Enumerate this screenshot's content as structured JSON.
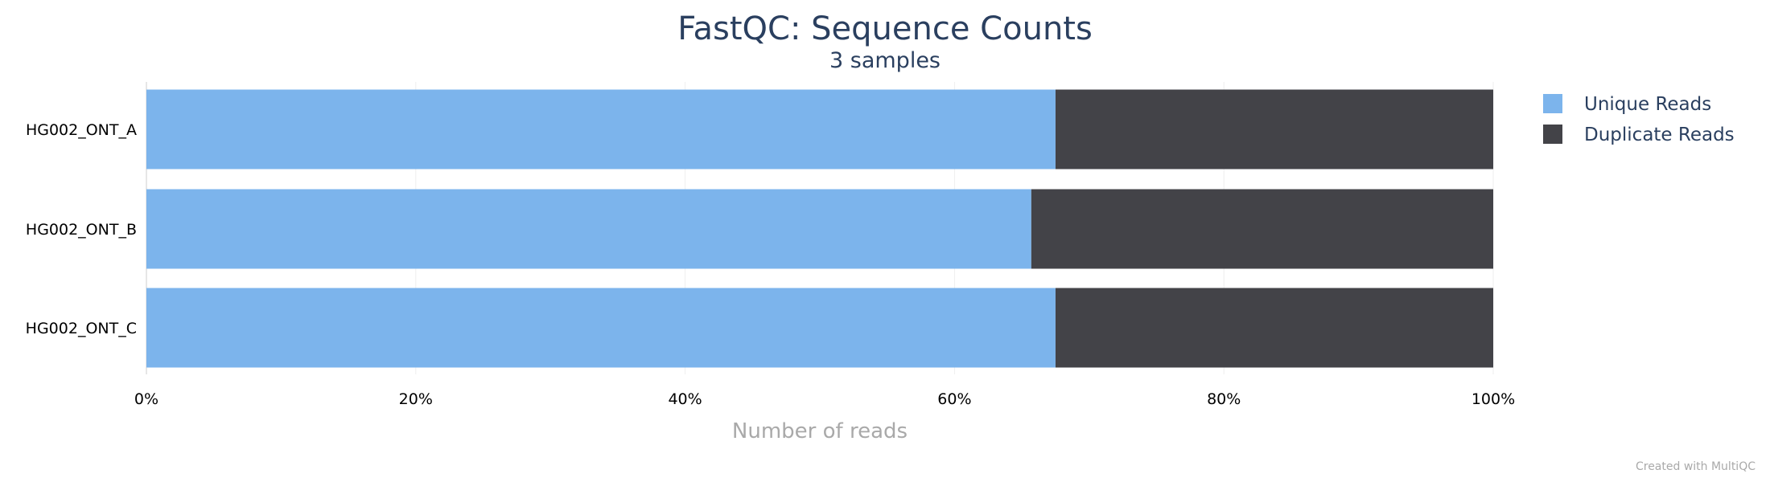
{
  "chart_data": {
    "type": "bar",
    "orientation": "horizontal",
    "stacked": true,
    "title": "FastQC: Sequence Counts",
    "subtitle": "3 samples",
    "xlabel": "Number of reads",
    "ylabel": "",
    "xlim": [
      0,
      100
    ],
    "x_ticks": [
      "0%",
      "20%",
      "40%",
      "60%",
      "80%",
      "100%"
    ],
    "categories": [
      "HG002_ONT_A",
      "HG002_ONT_B",
      "HG002_ONT_C"
    ],
    "series": [
      {
        "name": "Unique Reads",
        "color": "#7cb4ec",
        "values": [
          67.5,
          65.7,
          67.5
        ]
      },
      {
        "name": "Duplicate Reads",
        "color": "#434348",
        "values": [
          32.5,
          34.3,
          32.5
        ]
      }
    ],
    "grid": true,
    "legend_position": "top-right",
    "credit": "Created with MultiQC"
  }
}
